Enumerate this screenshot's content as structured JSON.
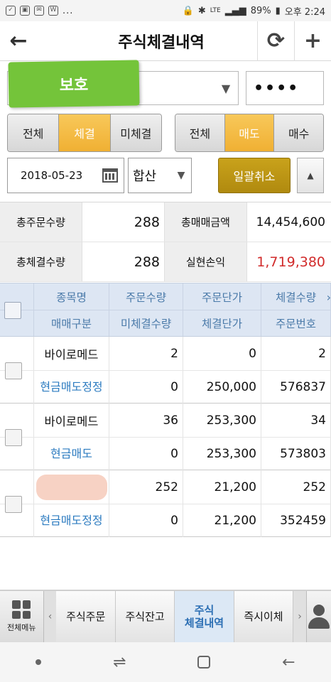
{
  "status": {
    "time_label": "오후 2:24",
    "battery": "89%",
    "network": "LTE",
    "dots": "..."
  },
  "header": {
    "title": "주식체결내역"
  },
  "account": {
    "tag_text": "보호",
    "password_mask": "••••"
  },
  "filters": {
    "execution": [
      "전체",
      "체결",
      "미체결"
    ],
    "execution_selected": "체결",
    "side": [
      "전체",
      "매도",
      "매수"
    ],
    "side_selected": "매도",
    "date": "2018-05-23",
    "mode": "합산",
    "cancel_all": "일괄취소"
  },
  "summary": {
    "total_order_qty_label": "총주문수량",
    "total_order_qty": "288",
    "total_trade_amount_label": "총매매금액",
    "total_trade_amount": "14,454,600",
    "total_exec_qty_label": "총체결수량",
    "total_exec_qty": "288",
    "realized_pl_label": "실현손익",
    "realized_pl": "1,719,380"
  },
  "table": {
    "headers_top": [
      "종목명",
      "주문수량",
      "주문단가",
      "체결수량"
    ],
    "headers_bottom": [
      "매매구분",
      "미체결수량",
      "체결단가",
      "주문번호"
    ],
    "rows": [
      {
        "name": "바이로메드",
        "order_qty": "2",
        "order_price": "0",
        "exec_qty": "2",
        "type": "현금매도정정",
        "unfilled_qty": "0",
        "exec_price": "250,000",
        "order_no": "576837"
      },
      {
        "name": "바이로메드",
        "order_qty": "36",
        "order_price": "253,300",
        "exec_qty": "34",
        "type": "현금매도",
        "unfilled_qty": "0",
        "exec_price": "253,300",
        "order_no": "573803"
      },
      {
        "name": "",
        "order_qty": "252",
        "order_price": "21,200",
        "exec_qty": "252",
        "type": "현금매도정정",
        "unfilled_qty": "0",
        "exec_price": "21,200",
        "order_no": "352459"
      }
    ]
  },
  "bottom_nav": {
    "menu_label": "전체메뉴",
    "tabs": [
      "주식주문",
      "주식잔고",
      "주식\n체결내역",
      "즉시이체"
    ],
    "active_tab": "주식\n체결내역"
  },
  "colors": {
    "accent_orange": "#f0b033",
    "cancel_gold": "#b08a0f",
    "header_blue": "#4a7aa9",
    "type_blue": "#2c7bc0",
    "pl_red": "#d12b2b",
    "tag_green": "#74c43a"
  }
}
